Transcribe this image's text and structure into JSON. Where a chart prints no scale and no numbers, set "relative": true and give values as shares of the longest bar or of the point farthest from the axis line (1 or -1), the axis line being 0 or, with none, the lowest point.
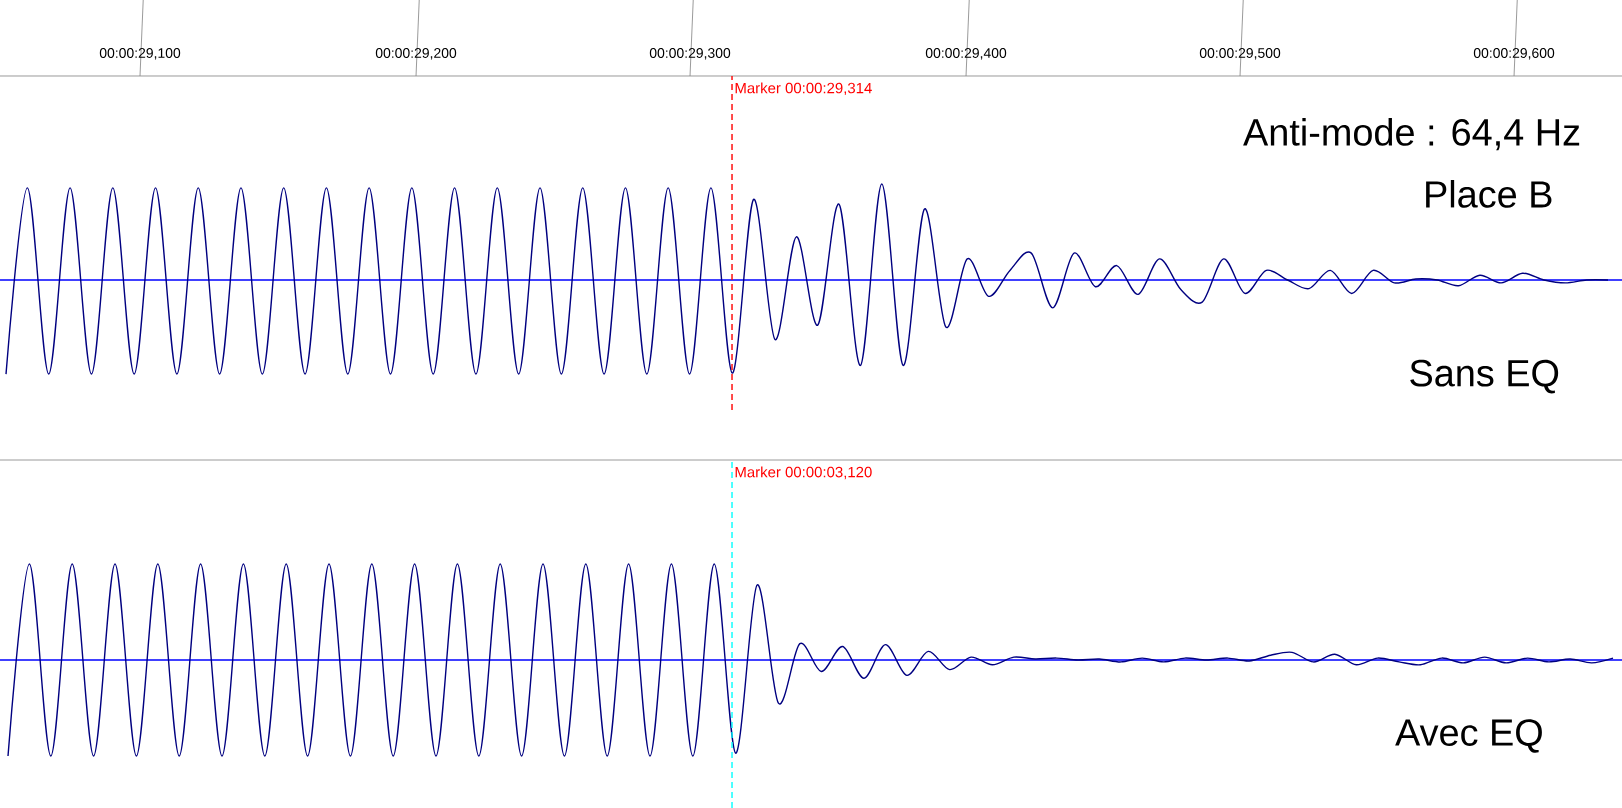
{
  "chart_data": [
    {
      "type": "line",
      "relative": true,
      "tick_labels": false,
      "categories": [
        null,
        null,
        null,
        null,
        null,
        null,
        null,
        null,
        null,
        null,
        null,
        null,
        null,
        null,
        null,
        null,
        null,
        null,
        null,
        null,
        null,
        null,
        null,
        null,
        null,
        null,
        null,
        null,
        null,
        null,
        null,
        null,
        null,
        null,
        null,
        null,
        null,
        null,
        null,
        null,
        null,
        null,
        null,
        null,
        null,
        null,
        null,
        null,
        null,
        null,
        null,
        null,
        null,
        null,
        null,
        null,
        null,
        null,
        null,
        null,
        null,
        null,
        null,
        null,
        null,
        null,
        null,
        null,
        null,
        null,
        null,
        null,
        null,
        null,
        null,
        null
      ],
      "series": [
        {
          "color": "#000080",
          "values": [
            -0.98,
            0.96,
            -0.98,
            0.96,
            -0.98,
            0.96,
            -0.98,
            0.96,
            -0.98,
            0.96,
            -0.98,
            0.96,
            -0.98,
            0.96,
            -0.98,
            0.96,
            -0.98,
            0.96,
            -0.98,
            0.96,
            -0.98,
            0.96,
            -0.98,
            0.96,
            -0.98,
            0.96,
            -0.98,
            0.96,
            -0.98,
            0.96,
            -0.98,
            0.96,
            -0.98,
            0.96,
            -0.97,
            0.84,
            -0.62,
            0.45,
            -0.47,
            0.79,
            -0.89,
            1,
            -0.89,
            0.74,
            -0.49,
            0.22,
            -0.17,
            0.1,
            0.28,
            -0.29,
            0.28,
            -0.07,
            0.15,
            -0.15,
            0.22,
            -0.1,
            -0.23,
            0.22,
            -0.14,
            0.1,
            0,
            -0.09,
            0.1,
            -0.14,
            0.1,
            -0.03,
            0.01,
            0,
            -0.06,
            0.05,
            -0.03,
            0.07,
            0,
            -0.03,
            0,
            0
          ]
        }
      ],
      "ref_lines": [
        {
          "axis": "y",
          "value": 0,
          "color": "#0000ff"
        }
      ],
      "annotations": [
        "00:00:29,100",
        "00:00:29,200",
        "00:00:29,300",
        "00:00:29,400",
        "00:00:29,500",
        "00:00:29,600",
        "Marker 00:00:29,314",
        "Anti-mode : 64,4 Hz",
        "Place B",
        "Sans EQ"
      ]
    },
    {
      "type": "line",
      "relative": true,
      "tick_labels": false,
      "categories": [
        null,
        null,
        null,
        null,
        null,
        null,
        null,
        null,
        null,
        null,
        null,
        null,
        null,
        null,
        null,
        null,
        null,
        null,
        null,
        null,
        null,
        null,
        null,
        null,
        null,
        null,
        null,
        null,
        null,
        null,
        null,
        null,
        null,
        null,
        null,
        null,
        null,
        null,
        null,
        null,
        null,
        null,
        null,
        null,
        null,
        null,
        null,
        null,
        null,
        null,
        null,
        null,
        null,
        null,
        null,
        null,
        null,
        null,
        null,
        null,
        null,
        null,
        null,
        null,
        null,
        null,
        null,
        null,
        null,
        null,
        null,
        null,
        null,
        null,
        null,
        null
      ],
      "series": [
        {
          "color": "#000080",
          "values": [
            -1,
            1,
            -1,
            1,
            -1,
            1,
            -1,
            1,
            -1,
            1,
            -1,
            1,
            -1,
            1,
            -1,
            1,
            -1,
            1,
            -1,
            1,
            -1,
            1,
            -1,
            1,
            -1,
            1,
            -1,
            1,
            -1,
            1,
            -1,
            1,
            -1,
            1,
            -0.97,
            0.78,
            -0.45,
            0.17,
            -0.12,
            0.14,
            -0.19,
            0.16,
            -0.16,
            0.09,
            -0.1,
            0.03,
            -0.05,
            0.03,
            0.01,
            0.02,
            0,
            0.01,
            -0.02,
            0.02,
            -0.02,
            0.02,
            0,
            0.02,
            -0.01,
            0.05,
            0.08,
            -0.02,
            0.06,
            -0.05,
            0.02,
            -0.02,
            -0.05,
            0.02,
            -0.03,
            0.03,
            -0.03,
            0.02,
            -0.02,
            0.01,
            -0.03,
            0.02
          ]
        }
      ],
      "ref_lines": [
        {
          "axis": "y",
          "value": 0,
          "color": "#0000ff"
        }
      ],
      "annotations": [
        "Marker 00:00:03,120",
        "Avec EQ"
      ]
    }
  ]
}
